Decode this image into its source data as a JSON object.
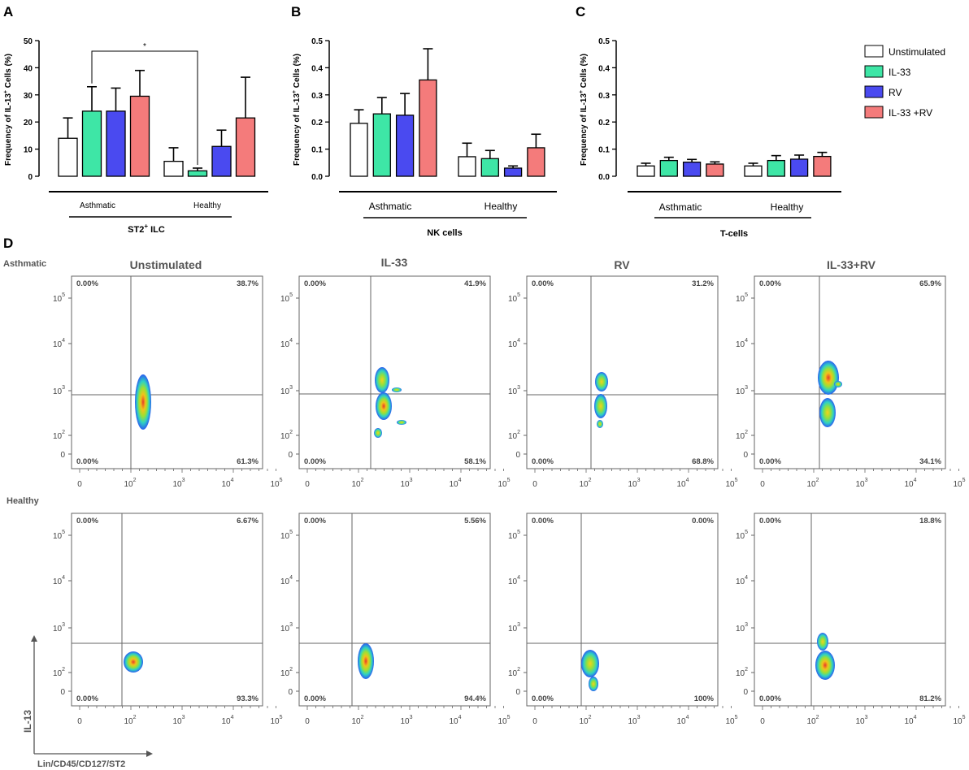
{
  "colors": {
    "Unstimulated": "#ffffff",
    "IL-33": "#3ee6a6",
    "RV": "#4a4af0",
    "IL-33 +RV": "#f47b7b"
  },
  "legend": [
    "Unstimulated",
    "IL-33",
    "RV",
    "IL-33 +RV"
  ],
  "chart_data": [
    {
      "type": "bar",
      "panel": "A",
      "ylabel_pre": "Frequency of IL-13",
      "ylabel_sup": "+",
      "ylabel_post": " Cells (%)",
      "ylim": [
        0,
        50
      ],
      "yticks": [
        "0",
        "10",
        "20",
        "30",
        "40",
        "50"
      ],
      "groups": [
        "Asthmatic",
        "Healthy"
      ],
      "population_pre": "ST2",
      "population_sup": "+",
      "population_post": " ILC",
      "significance": "*",
      "series": [
        {
          "name": "Unstimulated",
          "values": [
            14,
            5.5
          ],
          "errors": [
            7.5,
            5
          ]
        },
        {
          "name": "IL-33",
          "values": [
            24,
            2
          ],
          "errors": [
            9,
            1
          ]
        },
        {
          "name": "RV",
          "values": [
            24,
            11
          ],
          "errors": [
            8.5,
            6
          ]
        },
        {
          "name": "IL-33 +RV",
          "values": [
            29.5,
            21.5
          ],
          "errors": [
            9.5,
            15
          ]
        }
      ]
    },
    {
      "type": "bar",
      "panel": "B",
      "ylabel_pre": "Frequency of IL-13",
      "ylabel_sup": "+",
      "ylabel_post": " Cells (%)",
      "ylim": [
        0,
        0.5
      ],
      "yticks": [
        "0.0",
        "0.1",
        "0.2",
        "0.3",
        "0.4",
        "0.5"
      ],
      "groups": [
        "Asthmatic",
        "Healthy"
      ],
      "population_pre": "NK cells",
      "population_sup": "",
      "population_post": "",
      "series": [
        {
          "name": "Unstimulated",
          "values": [
            0.195,
            0.072
          ],
          "errors": [
            0.05,
            0.05
          ]
        },
        {
          "name": "IL-33",
          "values": [
            0.23,
            0.065
          ],
          "errors": [
            0.06,
            0.03
          ]
        },
        {
          "name": "RV",
          "values": [
            0.225,
            0.03
          ],
          "errors": [
            0.08,
            0.008
          ]
        },
        {
          "name": "IL-33 +RV",
          "values": [
            0.355,
            0.105
          ],
          "errors": [
            0.115,
            0.05
          ]
        }
      ]
    },
    {
      "type": "bar",
      "panel": "C",
      "ylabel_pre": "Frequency of IL-13",
      "ylabel_sup": "+",
      "ylabel_post": " Cells (%)",
      "ylim": [
        0,
        0.5
      ],
      "yticks": [
        "0.0",
        "0.1",
        "0.2",
        "0.3",
        "0.4",
        "0.5"
      ],
      "groups": [
        "Asthmatic",
        "Healthy"
      ],
      "population_pre": "T-cells",
      "population_sup": "",
      "population_post": "",
      "series": [
        {
          "name": "Unstimulated",
          "values": [
            0.038,
            0.038
          ],
          "errors": [
            0.01,
            0.01
          ]
        },
        {
          "name": "IL-33",
          "values": [
            0.058,
            0.058
          ],
          "errors": [
            0.012,
            0.018
          ]
        },
        {
          "name": "RV",
          "values": [
            0.052,
            0.063
          ],
          "errors": [
            0.01,
            0.015
          ]
        },
        {
          "name": "IL-33 +RV",
          "values": [
            0.045,
            0.073
          ],
          "errors": [
            0.008,
            0.015
          ]
        }
      ]
    }
  ],
  "flow": {
    "panel": "D",
    "columns": [
      "Unstimulated",
      "IL-33",
      "RV",
      "IL-33+RV"
    ],
    "x_axis_label": "Lin/CD45/CD127/ST2",
    "y_axis_label": "IL-13",
    "x_ticks": [
      {
        "base": "0",
        "exp": ""
      },
      {
        "base": "10",
        "exp": "2"
      },
      {
        "base": "10",
        "exp": "3"
      },
      {
        "base": "10",
        "exp": "4"
      },
      {
        "base": "10",
        "exp": "5"
      }
    ],
    "y_ticks": [
      {
        "base": "10",
        "exp": "5"
      },
      {
        "base": "10",
        "exp": "4"
      },
      {
        "base": "10",
        "exp": "3"
      },
      {
        "base": "10",
        "exp": "2"
      },
      {
        "base": "0",
        "exp": ""
      }
    ],
    "rows": [
      {
        "label": "Asthmatic",
        "plots": [
          {
            "ul": "0.00%",
            "ur": "38.7%",
            "ll": "0.00%",
            "lr": "61.3%"
          },
          {
            "ul": "0.00%",
            "ur": "41.9%",
            "ll": "0.00%",
            "lr": "58.1%"
          },
          {
            "ul": "0.00%",
            "ur": "31.2%",
            "ll": "0.00%",
            "lr": "68.8%"
          },
          {
            "ul": "0.00%",
            "ur": "65.9%",
            "ll": "0.00%",
            "lr": "34.1%"
          }
        ]
      },
      {
        "label": "Healthy",
        "plots": [
          {
            "ul": "0.00%",
            "ur": "6.67%",
            "ll": "0.00%",
            "lr": "93.3%"
          },
          {
            "ul": "0.00%",
            "ur": "5.56%",
            "ll": "0.00%",
            "lr": "94.4%"
          },
          {
            "ul": "0.00%",
            "ur": "0.00%",
            "ll": "0.00%",
            "lr": "100%"
          },
          {
            "ul": "0.00%",
            "ur": "18.8%",
            "ll": "0.00%",
            "lr": "81.2%"
          }
        ]
      }
    ]
  }
}
